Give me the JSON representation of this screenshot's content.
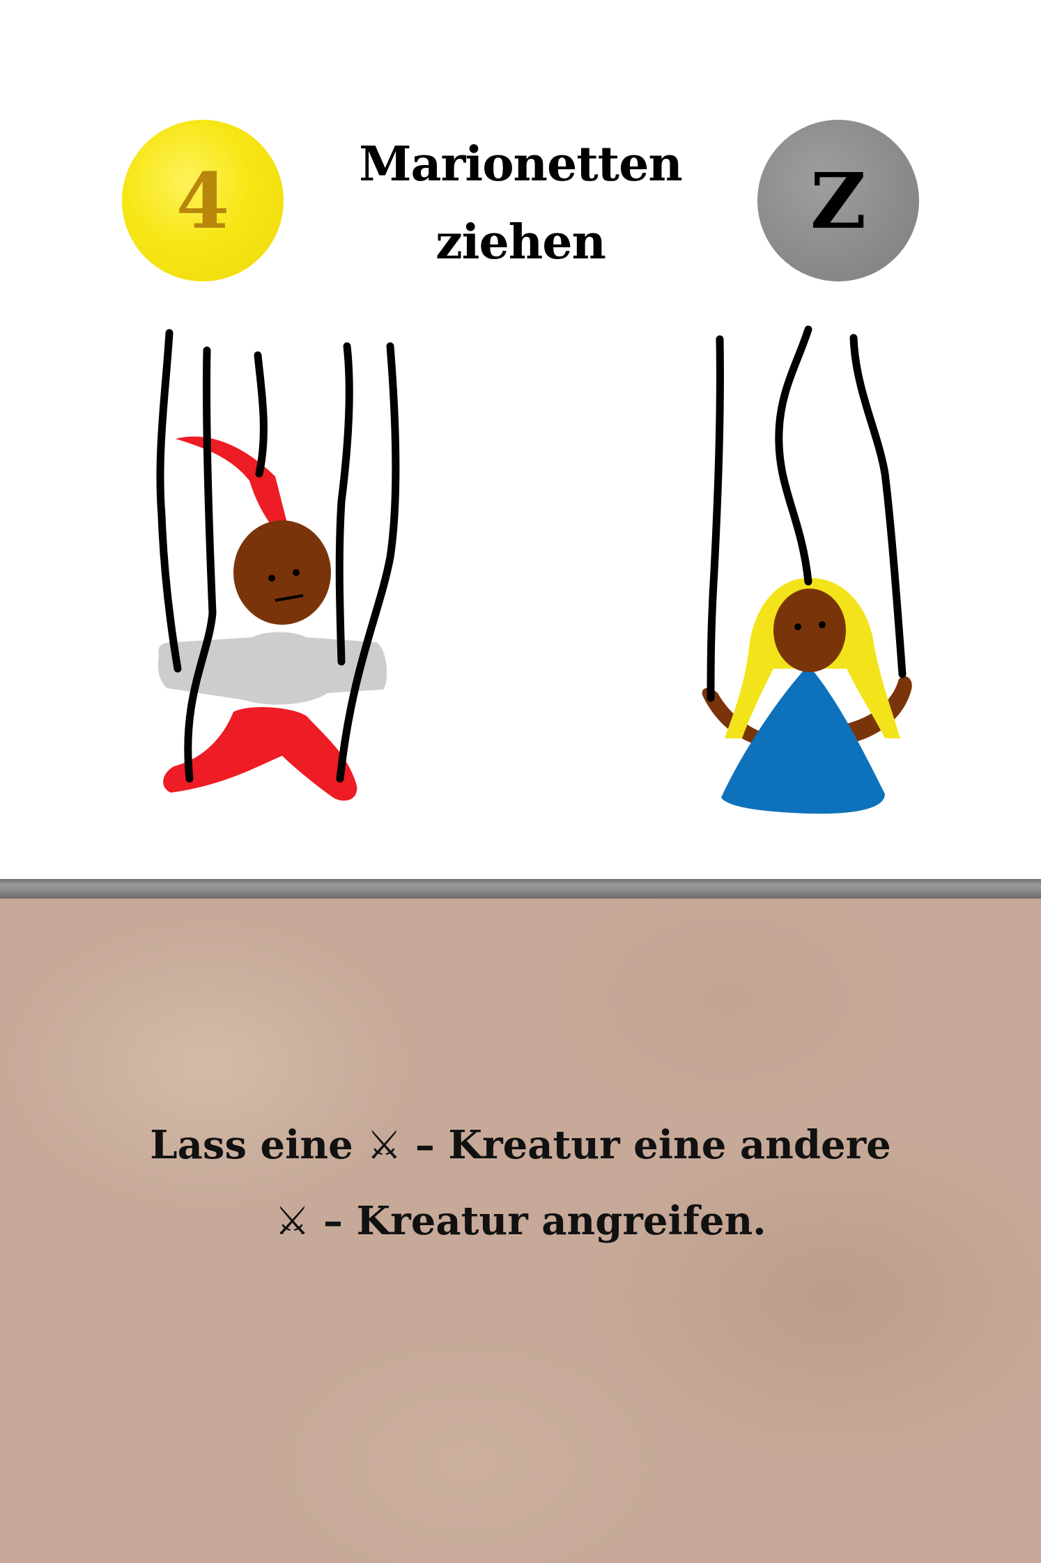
{
  "card": {
    "cost": "4",
    "title_line1": "Marionetten",
    "title_line2": "ziehen",
    "type_letter": "Z",
    "rules": {
      "line1_pre": "Lass eine ",
      "line1_post": "Kreatur eine andere",
      "line2_post": "Kreatur angreifen.",
      "creature_symbol": "⚔",
      "dash": " – "
    }
  },
  "colors": {
    "cost_coin": "#f5e516",
    "cost_text": "#b8860b",
    "type_coin": "#8c8c8c",
    "text_box": "#c6a998",
    "puppet_red": "#ee1c24",
    "puppet_dress": "#0d72bb",
    "puppet_hair": "#f3e31a"
  },
  "art": {
    "left_puppet": "jester-puppet",
    "right_puppet": "girl-puppet"
  }
}
